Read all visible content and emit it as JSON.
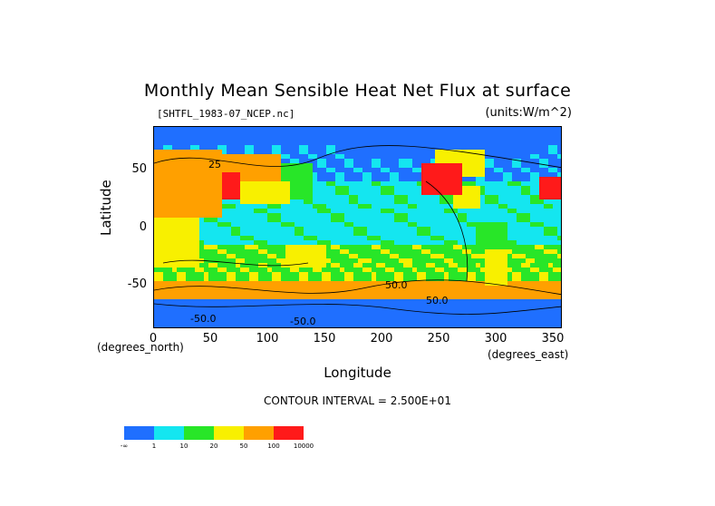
{
  "chart_data": {
    "type": "heatmap",
    "title": "Monthly Mean Sensible Heat Net Flux at surface",
    "file_label": "[SHTFL_1983-07_NCEP.nc]",
    "units_label": "(units:W/m^2)",
    "xlabel": "Longitude",
    "ylabel": "Latitude",
    "x_unit_note": "(degrees_east)",
    "y_unit_note": "(degrees_north)",
    "xlim": [
      0,
      357.5
    ],
    "ylim": [
      -88,
      88
    ],
    "x_ticks": [
      "0",
      "50",
      "100",
      "150",
      "200",
      "250",
      "300",
      "350"
    ],
    "y_ticks": [
      "50",
      "0",
      "-50"
    ],
    "contour_interval": "CONTOUR INTERVAL = 2.500E+01",
    "contour_labels": [
      "25",
      "50.0",
      "-50.0",
      "-50.0",
      "50.0"
    ],
    "colorbar": {
      "colors": [
        "#1f6fff",
        "#14e6f0",
        "#28e628",
        "#f8f000",
        "#ffa000",
        "#ff1a1a"
      ],
      "boundaries": [
        "-∞",
        "1",
        "10",
        "20",
        "50",
        "100",
        "10000"
      ]
    }
  }
}
